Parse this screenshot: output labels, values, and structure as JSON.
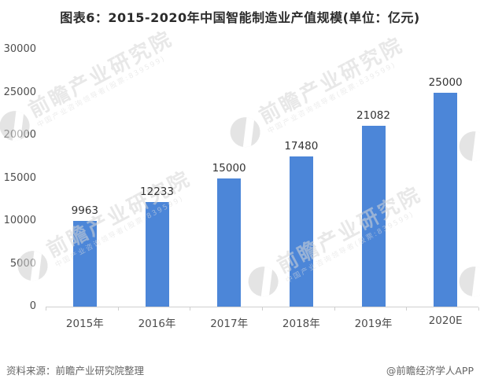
{
  "title": "图表6：2015-2020年中国智能制造业产值规模(单位：亿元)",
  "chart_data": {
    "type": "bar",
    "title": "图表6：2015-2020年中国智能制造业产值规模(单位：亿元)",
    "categories": [
      "2015年",
      "2016年",
      "2017年",
      "2018年",
      "2019年",
      "2020E"
    ],
    "values": [
      9963,
      12233,
      15000,
      17480,
      21082,
      25000
    ],
    "xlabel": "",
    "ylabel": "",
    "ylim": [
      0,
      30000
    ],
    "yticks": [
      0,
      5000,
      10000,
      15000,
      20000,
      25000,
      30000
    ],
    "grid": false,
    "legend": "none",
    "bar_color": "#4C86D8"
  },
  "footer": {
    "source": "资料来源：前瞻产业研究院整理",
    "credit": "@前瞻经济学人APP"
  },
  "watermark": {
    "main": "前瞻产业研究院",
    "sub": "中国产业咨询领导者(股票:839599)"
  },
  "colors": {
    "bar": "#4C86D8",
    "axis_line": "#CFCFCF",
    "title_text": "#2B2B2B",
    "axis_text": "#4D4D4D",
    "value_text": "#333333",
    "footer_text": "#666666",
    "watermark_text": "#D6D6D6"
  }
}
